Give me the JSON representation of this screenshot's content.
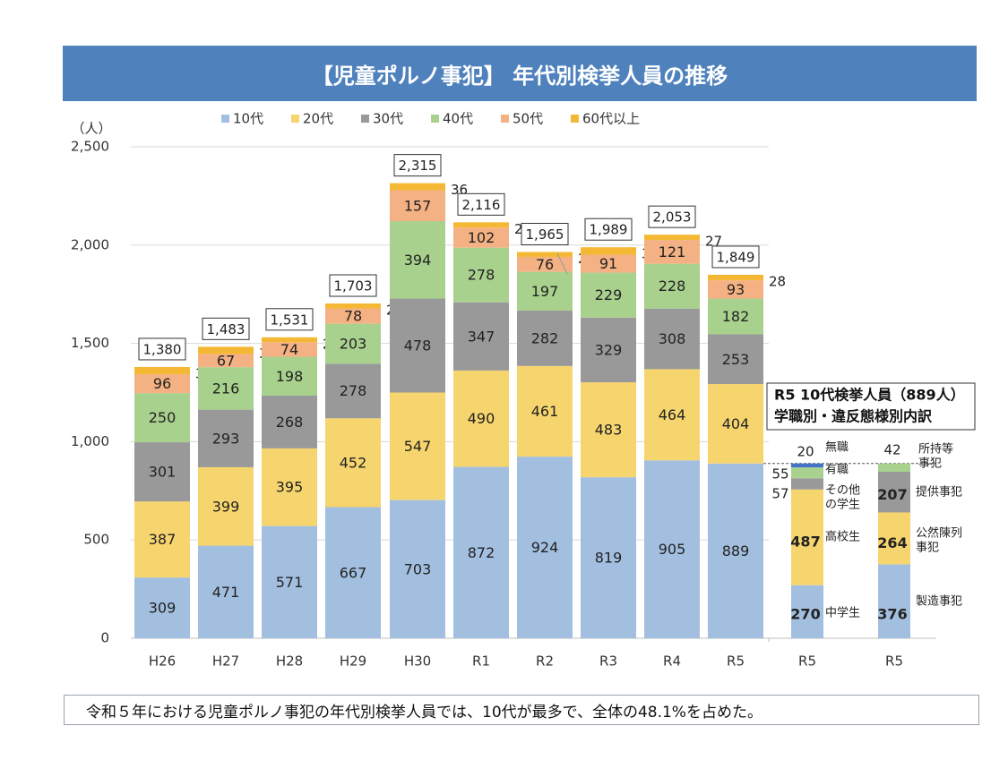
{
  "chart_data": {
    "type": "bar",
    "stacked": true,
    "title": "【児童ポルノ事犯】 年代別検挙人員の推移",
    "ylabel": "（人）",
    "ylim": [
      0,
      2500
    ],
    "yticks": [
      "0",
      "500",
      "1,000",
      "1,500",
      "2,000",
      "2,500"
    ],
    "grid": true,
    "legend_position": "top",
    "categories": [
      "H26",
      "H27",
      "H28",
      "H29",
      "H30",
      "R1",
      "R2",
      "R3",
      "R4",
      "R5"
    ],
    "series": [
      {
        "name": "10代",
        "color": "#a3bfe0",
        "values": [
          309,
          471,
          571,
          667,
          703,
          872,
          924,
          819,
          905,
          889
        ]
      },
      {
        "name": "20代",
        "color": "#f7d56e",
        "values": [
          387,
          399,
          395,
          452,
          547,
          490,
          461,
          483,
          464,
          404
        ]
      },
      {
        "name": "30代",
        "color": "#999999",
        "values": [
          301,
          293,
          268,
          278,
          478,
          347,
          282,
          329,
          308,
          253
        ]
      },
      {
        "name": "40代",
        "color": "#a9d18e",
        "values": [
          250,
          216,
          198,
          203,
          394,
          278,
          197,
          229,
          228,
          182
        ]
      },
      {
        "name": "50代",
        "color": "#f4b183",
        "values": [
          96,
          67,
          74,
          78,
          157,
          102,
          76,
          91,
          121,
          93
        ]
      },
      {
        "name": "60代以上",
        "color": "#f5b834",
        "values": [
          37,
          37,
          25,
          25,
          36,
          27,
          25,
          38,
          27,
          28
        ]
      }
    ],
    "totals": [
      "1,380",
      "1,483",
      "1,531",
      "1,703",
      "2,315",
      "2,116",
      "1,965",
      "1,989",
      "2,053",
      "1,849"
    ],
    "breakdown_title": [
      "R5 10代検挙人員（889人）",
      "学職別・違反態様別内訳"
    ],
    "breakdowns": [
      {
        "category": "R5",
        "segments": [
          {
            "value": 270,
            "label": [
              "中学生"
            ],
            "color": "#a3bfe0"
          },
          {
            "value": 487,
            "label": [
              "高校生"
            ],
            "color": "#f7d56e"
          },
          {
            "value": 57,
            "label": [
              "その他",
              "の学生"
            ],
            "color": "#999999"
          },
          {
            "value": 55,
            "label": [
              "有職"
            ],
            "color": "#a9d18e"
          },
          {
            "value": 20,
            "label": [
              "無職"
            ],
            "color": "#4472c4"
          }
        ]
      },
      {
        "category": "R5",
        "segments": [
          {
            "value": 376,
            "label": [
              "製造事犯"
            ],
            "color": "#a3bfe0"
          },
          {
            "value": 264,
            "label": [
              "公然陳列",
              "事犯"
            ],
            "color": "#f7d56e"
          },
          {
            "value": 207,
            "label": [
              "提供事犯"
            ],
            "color": "#999999"
          },
          {
            "value": 42,
            "label": [
              "所持等",
              "事犯"
            ],
            "color": "#a9d18e"
          }
        ]
      }
    ]
  },
  "footer": {
    "text": "令和５年における児童ポルノ事犯の年代別検挙人員では、10代が最多で、全体の48.1%を占めた。"
  }
}
